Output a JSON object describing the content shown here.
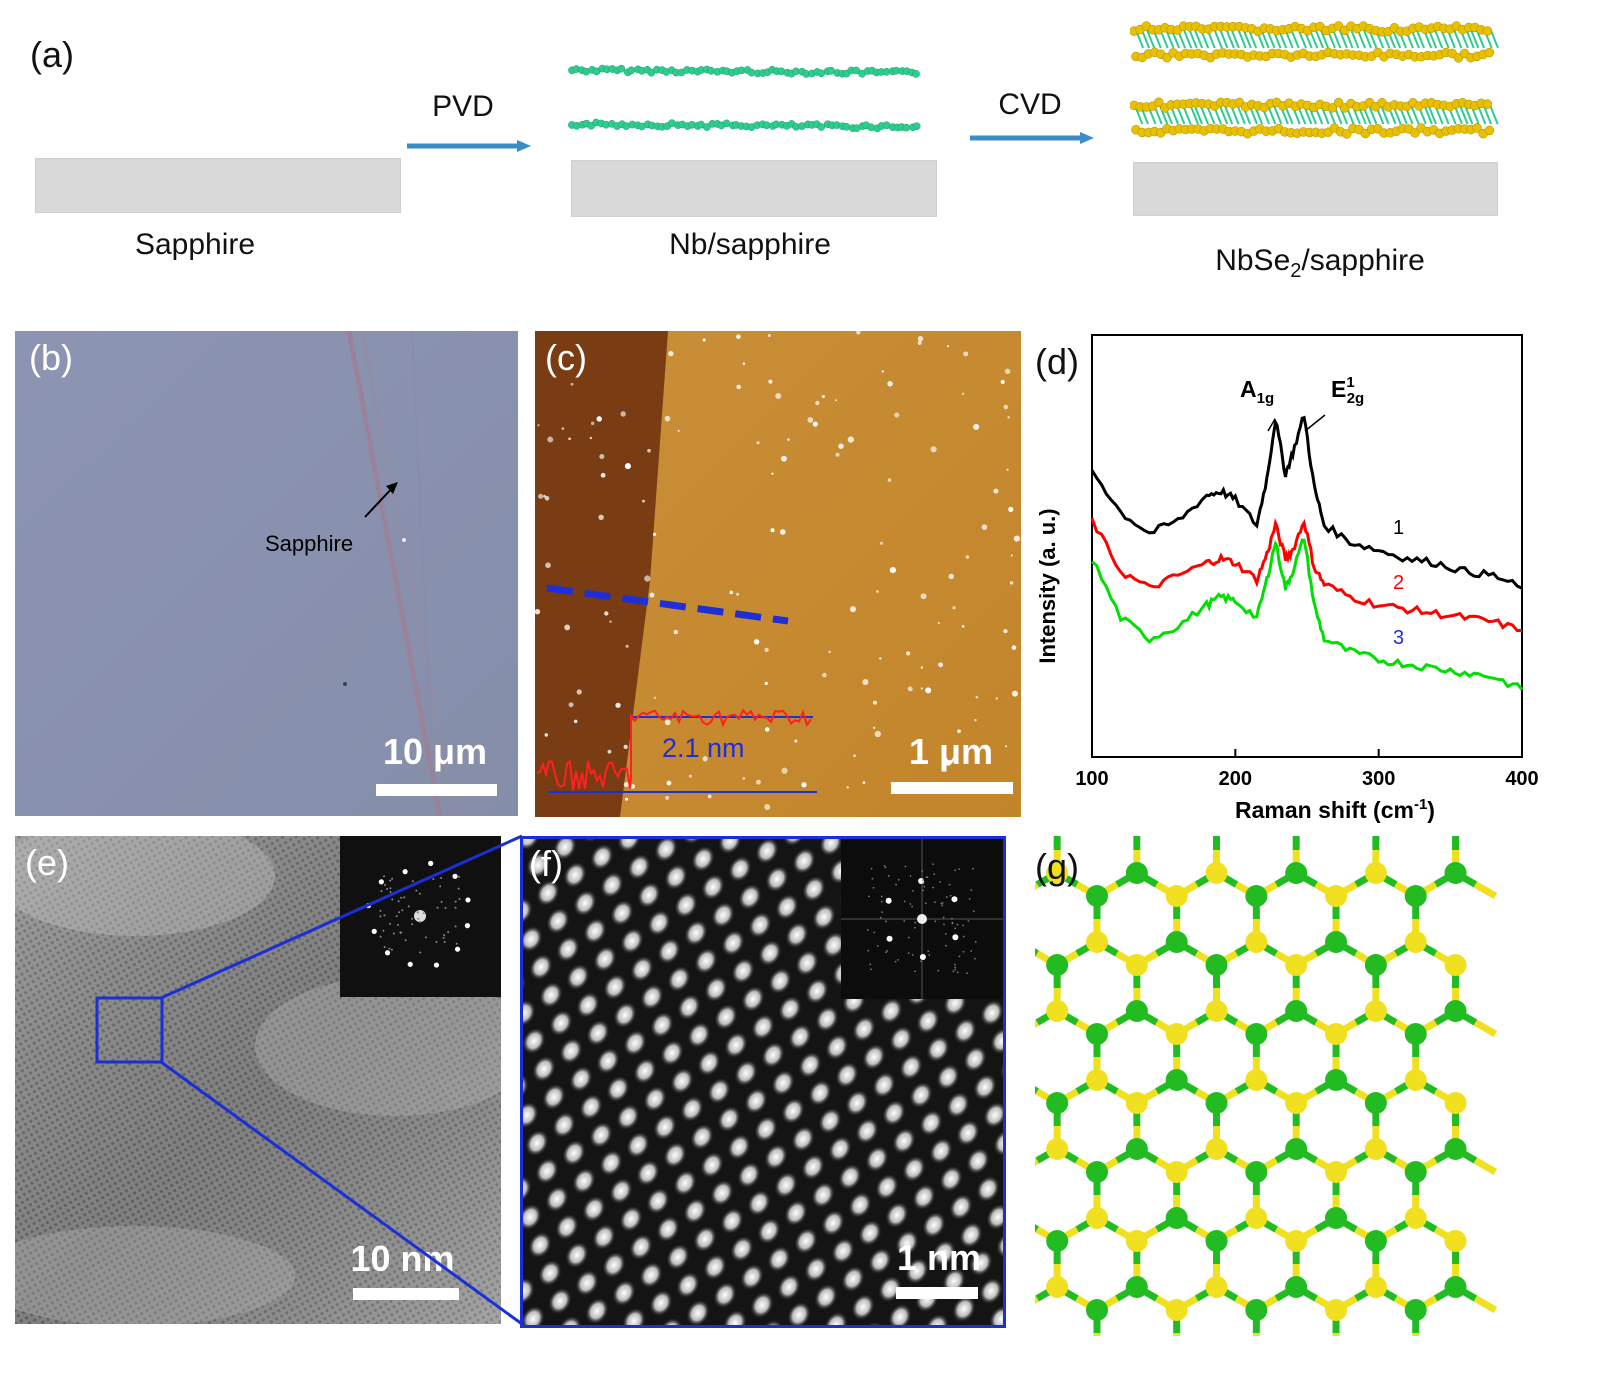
{
  "panel_a": {
    "label": "(a)",
    "step1": "Sapphire",
    "arrow1": "PVD",
    "step2": "Nb/sapphire",
    "arrow2": "CVD",
    "step3_main": "NbSe",
    "step3_sub": "2",
    "step3_tail": "/sapphire",
    "colors": {
      "nb_atom": "#2ecc8f",
      "se_atom": "#e8c000",
      "substrate": "#d9d9d9",
      "arrow": "#3a8dc8"
    }
  },
  "panel_b": {
    "label": "(b)",
    "annotation": "Sapphire",
    "scale": "10 μm",
    "colors": {
      "background": "#8a93b0",
      "stripe": "#9a7f94"
    }
  },
  "panel_c": {
    "label": "(c)",
    "step_height": "2.1 nm",
    "scale": "1 μm",
    "colors": {
      "substrate_region": "#7a3a10",
      "film_region": "#c98a30",
      "line": "#1f2fd8",
      "profile": "#ff2020"
    }
  },
  "panel_d": {
    "label": "(d)",
    "peak1_main": "A",
    "peak1_sub": "1g",
    "peak2_main": "E",
    "peak2_sup": "1",
    "peak2_sub": "2g",
    "chart_data": {
      "type": "line",
      "xlabel_main": "Raman shift (cm",
      "xlabel_sup": "-1",
      "xlabel_tail": ")",
      "ylabel": "Intensity (a. u.)",
      "xlim": [
        100,
        400
      ],
      "xticks": [
        "100",
        "200",
        "300",
        "400"
      ],
      "series": [
        {
          "name": "1",
          "color": "#000000",
          "x": [
            100,
            120,
            140,
            160,
            180,
            190,
            200,
            215,
            222,
            228,
            235,
            240,
            248,
            255,
            262,
            280,
            300,
            320,
            340,
            360,
            380,
            400
          ],
          "y": [
            0.68,
            0.58,
            0.53,
            0.56,
            0.62,
            0.63,
            0.61,
            0.55,
            0.66,
            0.8,
            0.67,
            0.72,
            0.81,
            0.64,
            0.55,
            0.51,
            0.49,
            0.47,
            0.46,
            0.44,
            0.43,
            0.4
          ]
        },
        {
          "name": "2",
          "color": "#ff0000",
          "x": [
            100,
            120,
            140,
            160,
            180,
            190,
            200,
            215,
            222,
            228,
            235,
            240,
            248,
            255,
            262,
            280,
            300,
            320,
            340,
            360,
            380,
            400
          ],
          "y": [
            0.56,
            0.44,
            0.4,
            0.43,
            0.46,
            0.47,
            0.46,
            0.42,
            0.48,
            0.55,
            0.47,
            0.49,
            0.56,
            0.45,
            0.41,
            0.38,
            0.36,
            0.35,
            0.34,
            0.33,
            0.32,
            0.3
          ]
        },
        {
          "name": "3",
          "color": "#00e000",
          "x": [
            100,
            120,
            140,
            160,
            180,
            190,
            200,
            215,
            222,
            228,
            235,
            240,
            248,
            255,
            262,
            280,
            300,
            320,
            340,
            360,
            380,
            400
          ],
          "y": [
            0.47,
            0.33,
            0.28,
            0.31,
            0.36,
            0.38,
            0.37,
            0.33,
            0.42,
            0.51,
            0.4,
            0.44,
            0.52,
            0.36,
            0.28,
            0.25,
            0.23,
            0.22,
            0.21,
            0.2,
            0.19,
            0.16
          ]
        }
      ]
    }
  },
  "panel_e": {
    "label": "(e)",
    "scale": "10 nm",
    "colors": {
      "zoom_box": "#1a2fd8"
    }
  },
  "panel_f": {
    "label": "(f)",
    "scale": "1 nm"
  },
  "panel_g": {
    "label": "(g)",
    "colors": {
      "nb": "#22bb22",
      "se": "#f0e020"
    }
  }
}
